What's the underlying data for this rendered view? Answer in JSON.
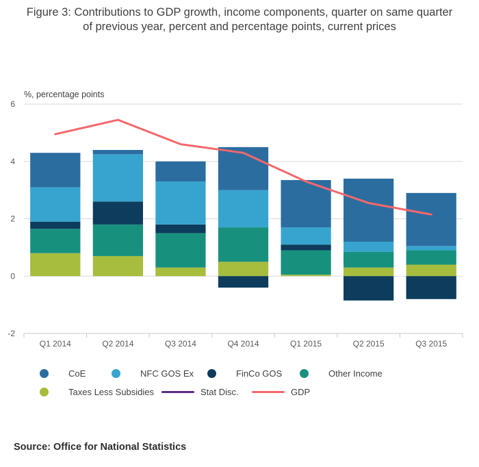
{
  "title": "Figure 3: Contributions to GDP growth, income components, quarter on same quarter of previous year, percent and percentage points, current prices",
  "source": "Source: Office for National Statistics",
  "chart_data": {
    "type": "bar",
    "subtype": "stacked_bar_with_lines",
    "title": "Figure 3: Contributions to GDP growth, income components, quarter on same quarter of previous year, percent and percentage points, current prices",
    "ylabel": "%, percentage points",
    "xlabel": "",
    "ylim": [
      -2,
      6
    ],
    "yticks": [
      -2,
      0,
      2,
      4,
      6
    ],
    "grid": true,
    "legend_position": "bottom",
    "categories": [
      "Q1 2014",
      "Q2 2014",
      "Q3 2014",
      "Q4 2014",
      "Q1 2015",
      "Q2 2015",
      "Q3 2015"
    ],
    "bar_series": [
      {
        "name": "CoE",
        "color": "#2c6da0",
        "values": [
          1.2,
          0.15,
          0.7,
          1.5,
          1.65,
          2.2,
          1.85
        ]
      },
      {
        "name": "NFC GOS Ex",
        "color": "#37a4cf",
        "values": [
          1.2,
          1.65,
          1.5,
          1.3,
          0.6,
          0.35,
          0.15
        ]
      },
      {
        "name": "FinCo GOS",
        "color": "#0d3c5c",
        "values": [
          0.25,
          0.8,
          0.3,
          -0.4,
          0.2,
          -0.85,
          -0.8
        ]
      },
      {
        "name": "Other Income",
        "color": "#17917e",
        "values": [
          0.85,
          1.1,
          1.2,
          1.2,
          0.85,
          0.55,
          0.5
        ]
      },
      {
        "name": "Taxes Less Subsidies",
        "color": "#a7bd3e",
        "values": [
          0.8,
          0.7,
          0.3,
          0.5,
          0.05,
          0.3,
          0.4
        ]
      }
    ],
    "line_series": [
      {
        "name": "Stat Disc.",
        "color": "#5b2d83",
        "values": [
          0,
          0,
          0,
          0,
          0,
          0,
          0
        ],
        "plotted": false
      },
      {
        "name": "GDP",
        "color": "#f4676c",
        "values": [
          4.95,
          5.45,
          4.6,
          4.3,
          3.3,
          2.55,
          2.15
        ]
      }
    ],
    "stack_order_bottom_to_top": [
      "Taxes Less Subsidies",
      "Other Income",
      "FinCo GOS",
      "NFC GOS Ex",
      "CoE"
    ],
    "legend_rows": [
      [
        "CoE",
        "NFC GOS Ex",
        "FinCo GOS",
        "Other Income"
      ],
      [
        "Taxes Less Subsidies",
        "Stat Disc.",
        "GDP"
      ]
    ],
    "colors": {
      "grid": "#d9d9d9",
      "axis": "#c8c8c8",
      "axis_text": "#595959"
    }
  }
}
